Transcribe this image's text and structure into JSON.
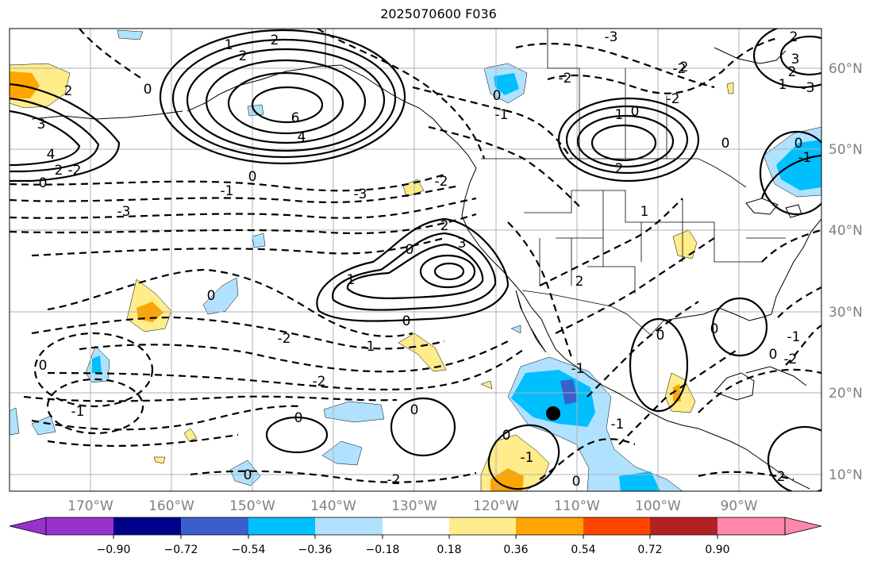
{
  "title": "2025070600 F036",
  "map": {
    "lon_labels": [
      "170°W",
      "160°W",
      "150°W",
      "140°W",
      "130°W",
      "120°W",
      "110°W",
      "100°W",
      "90°W"
    ],
    "lat_labels": [
      "60°N",
      "50°N",
      "40°N",
      "30°N",
      "20°N",
      "10°N"
    ],
    "contour_labels": [
      "2",
      "2",
      "6",
      "4",
      "0",
      "0",
      "1",
      "2",
      "3",
      "4",
      "2",
      "-2",
      "0",
      "-1",
      "-3",
      "-3",
      "-2",
      "-3",
      "-2",
      "0",
      "2",
      "1",
      "0",
      "-2",
      "-1",
      "-2",
      "0",
      "-1",
      "0",
      "0",
      "0",
      "0",
      "1",
      "-1",
      "0",
      "0",
      "3",
      "2",
      "1",
      "0",
      "-1",
      "2",
      "-2",
      "-2",
      "0",
      "-1",
      "2",
      "2",
      "2",
      "3",
      "1",
      "0",
      "-1",
      "0",
      "-1",
      "-2",
      "0",
      "0",
      "-1",
      "0",
      "-2",
      "2",
      "-3"
    ],
    "marker": "filled black dot near 17.5°N 113°W"
  },
  "colorbar": {
    "tick_labels": [
      "−0.90",
      "−0.72",
      "−0.54",
      "−0.36",
      "−0.18",
      "0.18",
      "0.36",
      "0.54",
      "0.72",
      "0.90"
    ],
    "colors": [
      "#9932cc",
      "#00008b",
      "#3a5fcd",
      "#00bfff",
      "#b0e2ff",
      "#ffffff",
      "#ffec8b",
      "#ffa500",
      "#ff4500",
      "#b22222",
      "#ff88aa"
    ]
  }
}
